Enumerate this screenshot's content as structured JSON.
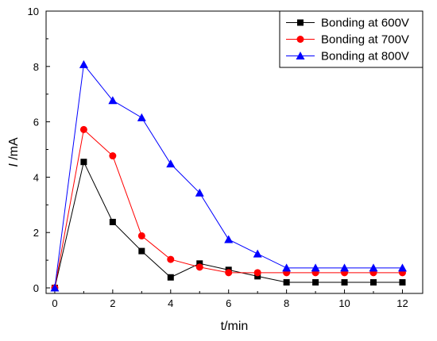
{
  "chart_data": {
    "type": "line",
    "title": "",
    "xlabel": "t/min",
    "ylabel_italic": "I",
    "ylabel_unit": " /mA",
    "xlim": [
      -0.3,
      12.7
    ],
    "ylim": [
      -0.2,
      10
    ],
    "xticks": [
      0,
      2,
      4,
      6,
      8,
      10,
      12
    ],
    "yticks": [
      0,
      2,
      4,
      6,
      8,
      10
    ],
    "grid": false,
    "legend_position": "top-right",
    "series": [
      {
        "name": "Bonding at 600V",
        "color": "#000000",
        "marker": "square",
        "x": [
          0,
          1,
          2,
          3,
          4,
          5,
          6,
          7,
          8,
          9,
          10,
          11,
          12
        ],
        "y": [
          0,
          4.55,
          2.38,
          1.33,
          0.38,
          0.88,
          0.65,
          0.42,
          0.2,
          0.2,
          0.2,
          0.2,
          0.2
        ]
      },
      {
        "name": "Bonding at 700V",
        "color": "#ff0000",
        "marker": "circle",
        "x": [
          0,
          1,
          2,
          3,
          4,
          5,
          6,
          7,
          8,
          9,
          10,
          11,
          12
        ],
        "y": [
          0,
          5.72,
          4.77,
          1.88,
          1.03,
          0.75,
          0.55,
          0.55,
          0.55,
          0.55,
          0.55,
          0.55,
          0.55
        ]
      },
      {
        "name": "Bonding at 800V",
        "color": "#0000ff",
        "marker": "triangle",
        "x": [
          0,
          1,
          2,
          3,
          4,
          5,
          6,
          7,
          8,
          9,
          10,
          11,
          12
        ],
        "y": [
          0,
          8.07,
          6.77,
          6.15,
          4.48,
          3.43,
          1.75,
          1.23,
          0.72,
          0.72,
          0.72,
          0.72,
          0.72
        ]
      }
    ]
  }
}
